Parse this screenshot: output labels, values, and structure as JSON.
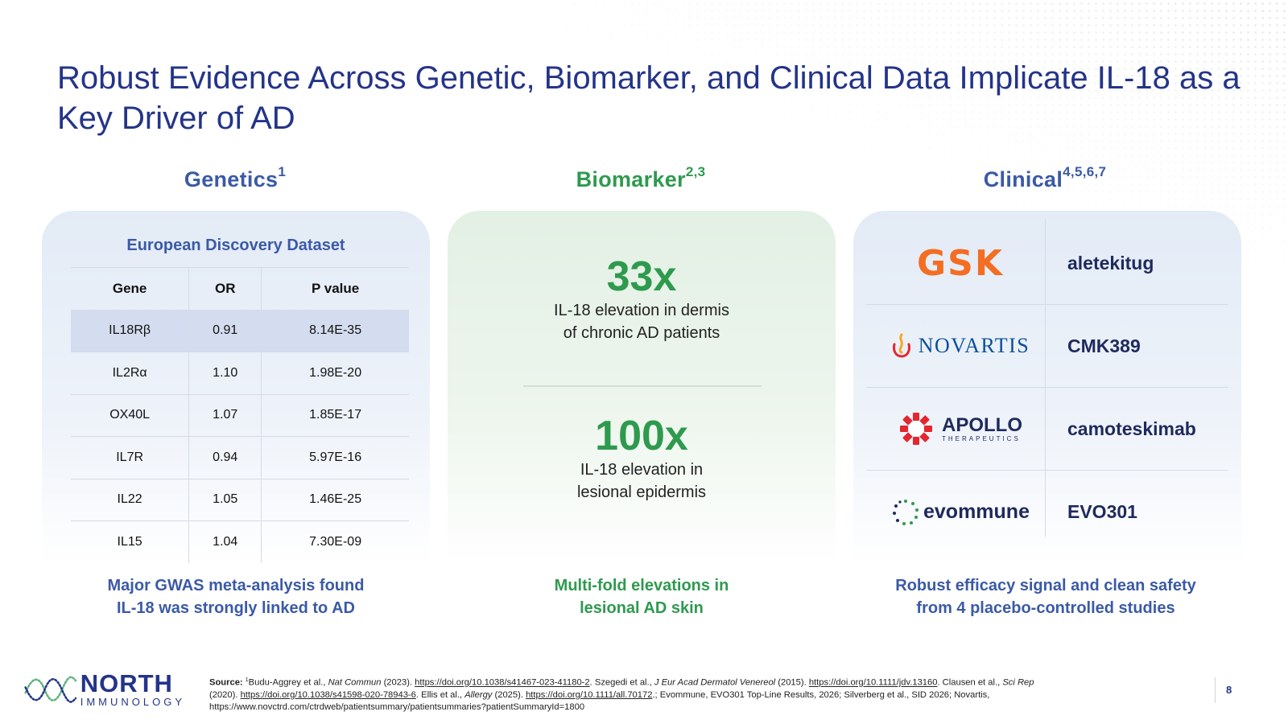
{
  "title": "Robust Evidence Across Genetic, Biomarker, and Clinical Data Implicate IL-18 as a Key Driver of AD",
  "columns": {
    "genetics": {
      "label": "Genetics",
      "sup": "1"
    },
    "biomarker": {
      "label": "Biomarker",
      "sup": "2,3"
    },
    "clinical": {
      "label": "Clinical",
      "sup": "4,5,6,7"
    }
  },
  "genetics": {
    "dataset_title": "European Discovery Dataset",
    "headers": [
      "Gene",
      "OR",
      "P value"
    ],
    "rows": [
      [
        "IL18Rβ",
        "0.91",
        "8.14E-35"
      ],
      [
        "IL2Rα",
        "1.10",
        "1.98E-20"
      ],
      [
        "OX40L",
        "1.07",
        "1.85E-17"
      ],
      [
        "IL7R",
        "0.94",
        "5.97E-16"
      ],
      [
        "IL22",
        "1.05",
        "1.46E-25"
      ],
      [
        "IL15",
        "1.04",
        "7.30E-09"
      ]
    ],
    "caption_line1": "Major GWAS meta-analysis found",
    "caption_line2": "IL-18 was strongly linked to AD"
  },
  "biomarker": {
    "stat1": {
      "value": "33x",
      "line1": "IL-18 elevation in dermis",
      "line2": "of chronic AD patients"
    },
    "stat2": {
      "value": "100x",
      "line1": "IL-18 elevation in",
      "line2": "lesional epidermis"
    },
    "caption_line1": "Multi-fold elevations in",
    "caption_line2": "lesional AD skin"
  },
  "clinical": {
    "rows": [
      {
        "company": "GSK",
        "drug": "aletekitug"
      },
      {
        "company": "NOVARTIS",
        "drug": "CMK389"
      },
      {
        "company": "APOLLO",
        "company_sub": "THERAPEUTICS",
        "drug": "camoteskimab"
      },
      {
        "company": "evommune",
        "drug": "EVO301"
      }
    ],
    "caption_line1": "Robust efficacy signal and clean safety",
    "caption_line2": "from 4 placebo-controlled studies"
  },
  "footer": {
    "logo_name": "NORTH",
    "logo_sub": "IMMUNOLOGY",
    "source_label": "Source:",
    "s1": "Budu-Aggrey et al., ",
    "s1_journal": "Nat Commun",
    "s1_year": " (2023). ",
    "s1_link": "https://doi.org/10.1038/s41467-023-41180-2",
    "s2": ". Szegedi et al., ",
    "s2_journal": "J Eur Acad Dermatol Venereol",
    "s2_year": " (2015). ",
    "s2_link": "https://doi.org/10.1111/jdv.13160",
    "s3": ". Clausen et al., ",
    "s3_journal": "Sci Rep",
    "s3_year": " (2020). ",
    "s3_link": "https://doi.org/10.1038/s41598-020-78943-6",
    "s4": ". Ellis et al., ",
    "s4_journal": "Allergy",
    "s4_year": " (2025). ",
    "s4_link": "https://doi.org/10.1111/all.70172",
    "s5": ".; Evommune,  EVO301 Top-Line Results, 2026; Silverberg et al., SID 2026; Novartis, https://www.novctrd.com/ctrdweb/patientsummary/patientsummaries?patientSummaryId=1800",
    "page_number": "8"
  },
  "colors": {
    "title": "#243489",
    "genetics_accent": "#3b5aa6",
    "biomarker_accent": "#2e9a4e",
    "gsk_orange": "#f36e22",
    "novartis_blue": "#0a4f9c",
    "apollo_red": "#e4262f"
  }
}
